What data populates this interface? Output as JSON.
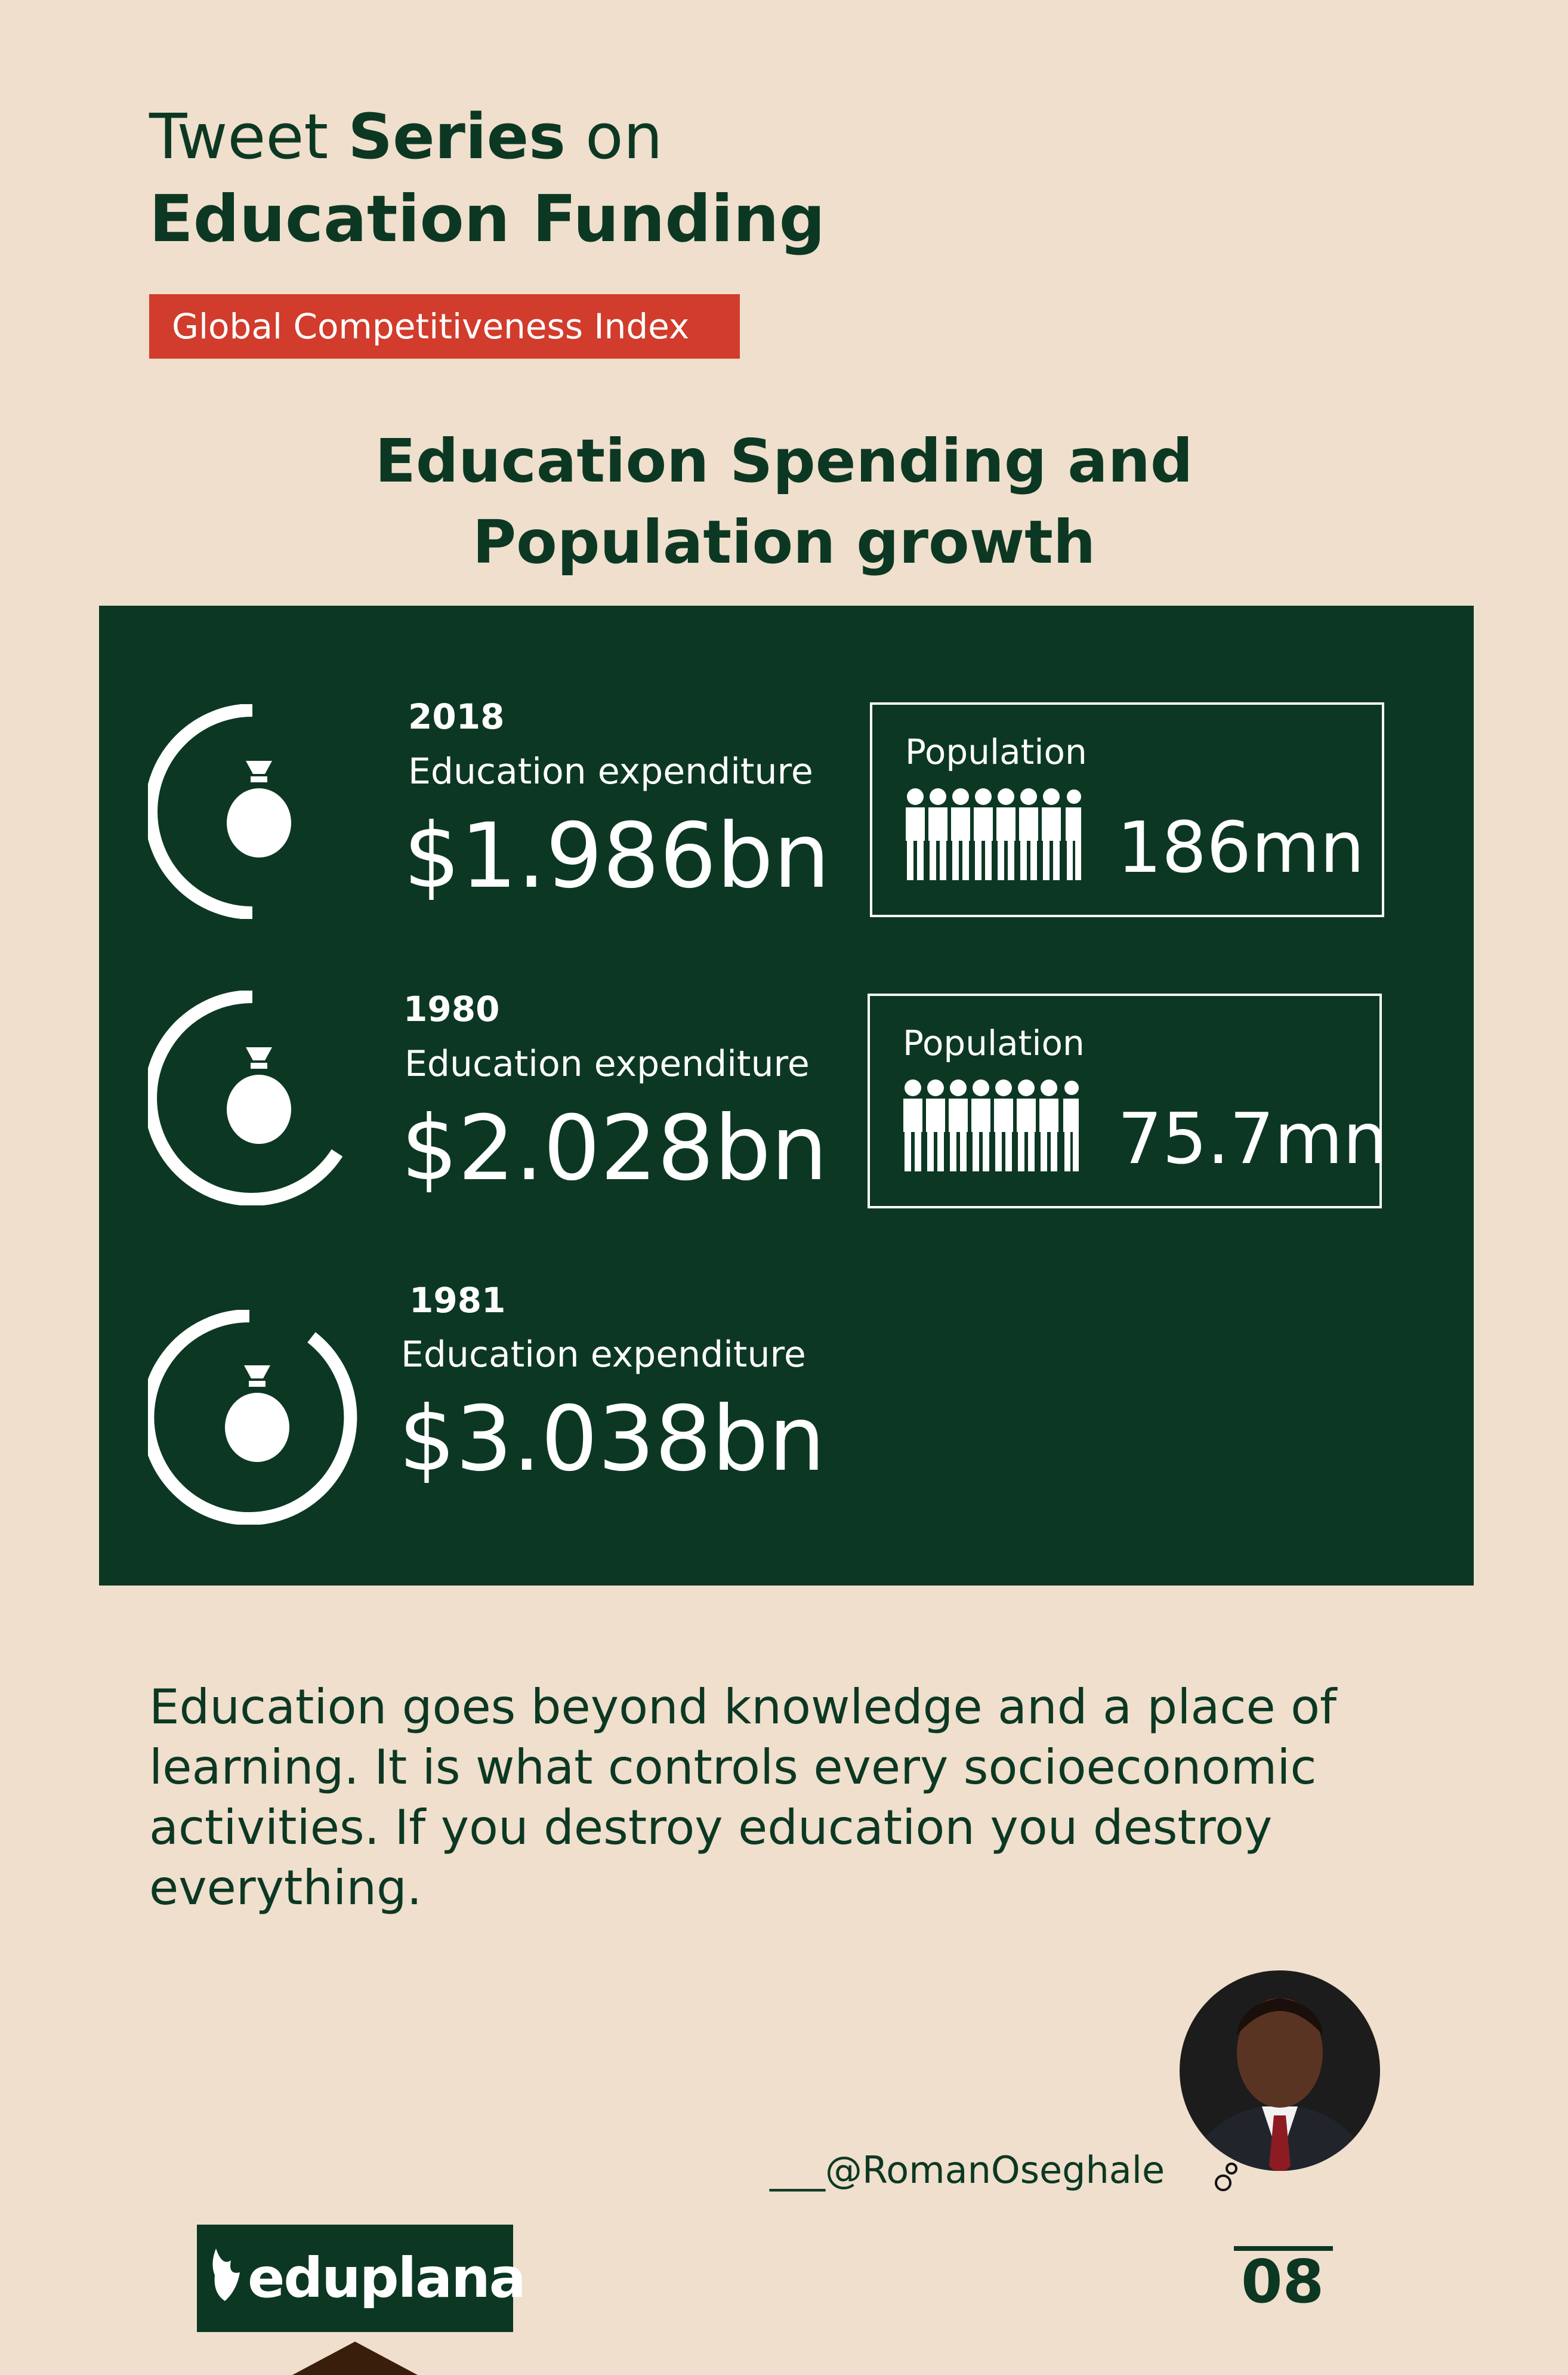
{
  "header": {
    "title_prefix": "Tweet ",
    "title_bold": "Series",
    "title_suffix": " on",
    "title_line2": "Education Funding",
    "tag": "Global Competitiveness Index"
  },
  "section_heading_line1": "Education Spending and",
  "section_heading_line2": "Population growth",
  "items": [
    {
      "year": "2018",
      "label": "Education expenditure",
      "amount": "$1.986bn",
      "pop_label": "Population",
      "pop_value": "186mn"
    },
    {
      "year": "1980",
      "label": "Education expenditure",
      "amount": "$2.028bn",
      "pop_label": "Population",
      "pop_value": "75.7mn"
    },
    {
      "year": "1981",
      "label": "Education expenditure",
      "amount": "$3.038bn"
    }
  ],
  "quote": "Education goes beyond knowledge and a place of learning. It is what controls every socioeconomic activities. If you destroy education you destroy everything.",
  "handle": "___@RomanOseghale",
  "logo_text": "eduplana",
  "page_number": "08",
  "colors": {
    "background": "#efdfcc",
    "green": "#0c3823",
    "red": "#d13c2c",
    "white": "#ffffff"
  }
}
